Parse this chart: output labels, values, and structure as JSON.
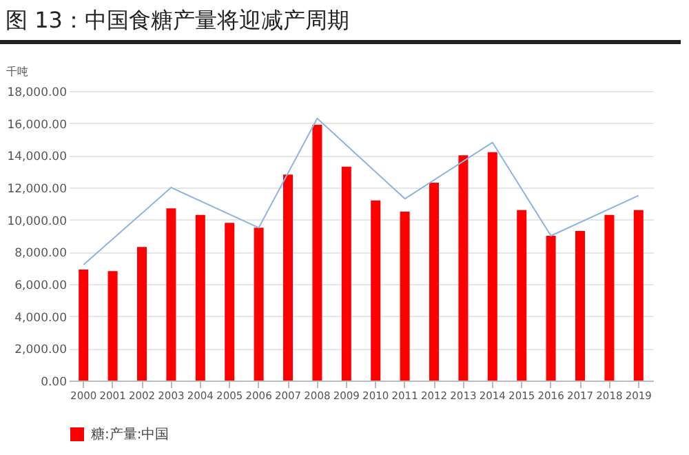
{
  "chart_data": {
    "type": "bar",
    "title": "图 13：中国食糖产量将迎减产周期",
    "ylabel": "千吨",
    "categories": [
      "2000",
      "2001",
      "2002",
      "2003",
      "2004",
      "2005",
      "2006",
      "2007",
      "2008",
      "2009",
      "2010",
      "2011",
      "2012",
      "2013",
      "2014",
      "2015",
      "2016",
      "2017",
      "2018",
      "2019"
    ],
    "series": [
      {
        "name": "糖:产量:中国",
        "color": "#ff0000",
        "values": [
          6900,
          6800,
          8300,
          10700,
          10300,
          9800,
          9500,
          12800,
          15900,
          13300,
          11200,
          10500,
          12300,
          14000,
          14200,
          10600,
          9000,
          9300,
          10300,
          10600
        ]
      },
      {
        "type": "line",
        "color": "#8db3e2",
        "values": [
          7200,
          null,
          null,
          12000,
          null,
          null,
          9500,
          null,
          16300,
          null,
          null,
          11300,
          null,
          null,
          14800,
          null,
          9000,
          null,
          null,
          11500
        ]
      }
    ],
    "ylim": [
      0,
      18000
    ],
    "yticks": [
      {
        "value": 0,
        "label": "0.00"
      },
      {
        "value": 2000,
        "label": "2,000.00"
      },
      {
        "value": 4000,
        "label": "4,000.00"
      },
      {
        "value": 6000,
        "label": "6,000.00"
      },
      {
        "value": 8000,
        "label": "8,000.00"
      },
      {
        "value": 10000,
        "label": "10,000.00"
      },
      {
        "value": 12000,
        "label": "12,000.00"
      },
      {
        "value": 14000,
        "label": "14,000.00"
      },
      {
        "value": 16000,
        "label": "16,000.00"
      },
      {
        "value": 18000,
        "label": "18,000.00"
      }
    ],
    "grid": "y",
    "legend": "bottom"
  }
}
